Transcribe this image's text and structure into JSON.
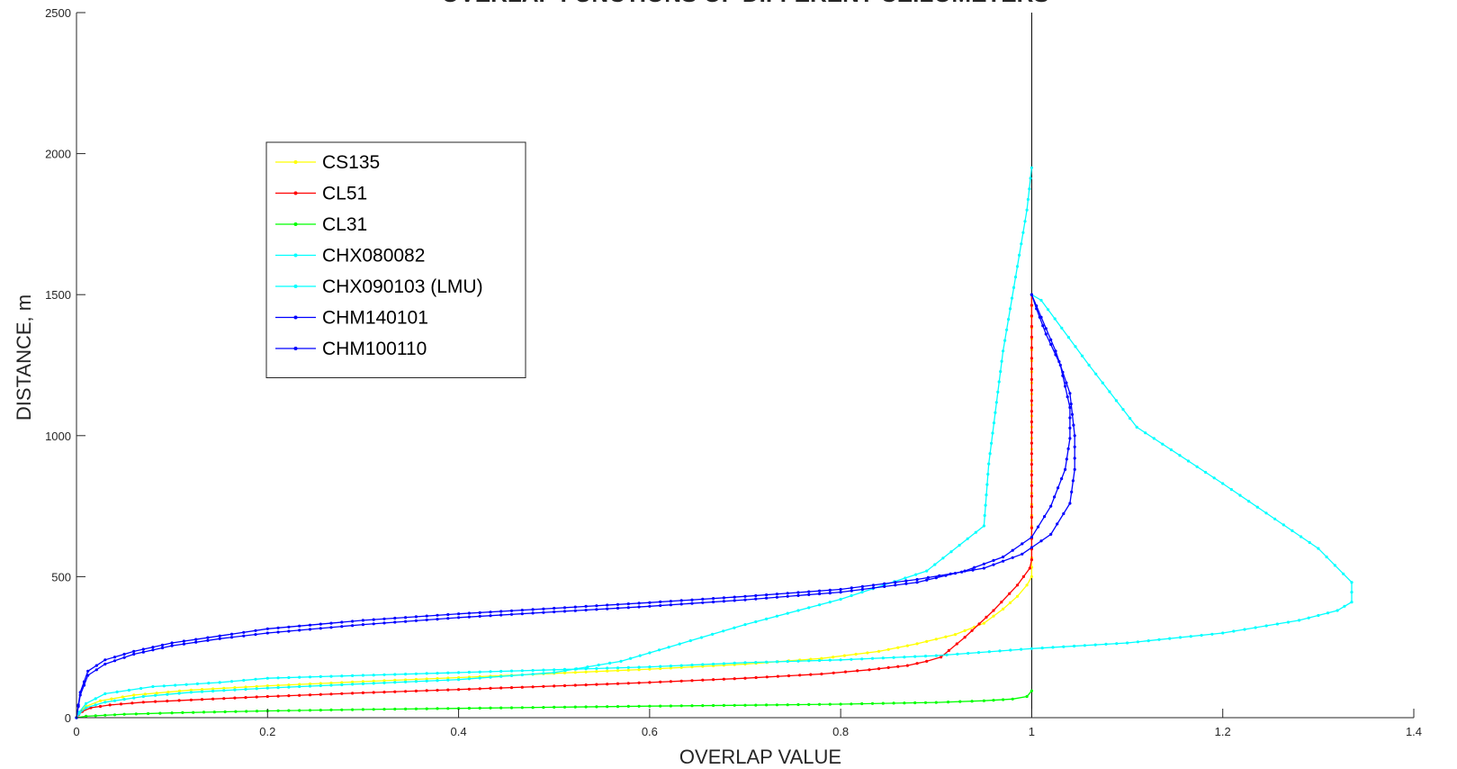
{
  "chart_data": {
    "type": "line",
    "title": "OVERLAP FUNCTIONS OF DIFFERENT CEILOMETERS",
    "xlabel": "OVERLAP VALUE",
    "ylabel": "DISTANCE, m",
    "xlim": [
      0,
      1.4
    ],
    "ylim": [
      0,
      2500
    ],
    "xticks": [
      0,
      0.2,
      0.4,
      0.6,
      0.8,
      1,
      1.2,
      1.4
    ],
    "xtick_labels": [
      "0",
      "0.2",
      "0.4",
      "0.6",
      "0.8",
      "1",
      "1.2",
      "1.4"
    ],
    "yticks": [
      0,
      500,
      1000,
      1500,
      2000,
      2500
    ],
    "ytick_labels": [
      "0",
      "500",
      "1000",
      "1500",
      "2000",
      "2500"
    ],
    "grid": false,
    "legend_position": "upper-left",
    "reference_line": {
      "x": 1,
      "y_range": [
        0,
        2500
      ],
      "color": "#000000"
    },
    "series": [
      {
        "name": "CS135",
        "color": "#ffff00",
        "x": [
          0,
          0.003,
          0.01,
          0.025,
          0.06,
          0.12,
          0.2,
          0.3,
          0.4,
          0.5,
          0.6,
          0.7,
          0.78,
          0.84,
          0.88,
          0.92,
          0.95,
          0.97,
          0.985,
          0.995,
          1,
          1,
          1
        ],
        "y": [
          0,
          20,
          40,
          60,
          80,
          98,
          113,
          128,
          142,
          157,
          172,
          190,
          210,
          235,
          262,
          295,
          335,
          385,
          430,
          470,
          500,
          600,
          1500
        ]
      },
      {
        "name": "CL51",
        "color": "#ff0000",
        "x": [
          0,
          0.002,
          0.006,
          0.015,
          0.035,
          0.07,
          0.12,
          0.2,
          0.3,
          0.4,
          0.5,
          0.6,
          0.7,
          0.78,
          0.83,
          0.87,
          0.89,
          0.905,
          0.93,
          0.96,
          0.985,
          0.998,
          1,
          1
        ],
        "y": [
          0,
          10,
          22,
          35,
          45,
          55,
          63,
          75,
          88,
          100,
          112,
          125,
          140,
          155,
          170,
          185,
          200,
          215,
          285,
          380,
          470,
          530,
          560,
          1500
        ]
      },
      {
        "name": "CL31",
        "color": "#00ff00",
        "x": [
          0,
          0.01,
          0.05,
          0.1,
          0.2,
          0.3,
          0.4,
          0.5,
          0.6,
          0.7,
          0.8,
          0.9,
          0.95,
          0.98,
          0.995,
          1
        ],
        "y": [
          0,
          5,
          12,
          17,
          24,
          29,
          33,
          37,
          41,
          44,
          48,
          54,
          60,
          66,
          75,
          95
        ]
      },
      {
        "name": "CHX080082",
        "color": "#00ffff",
        "x": [
          0,
          0.003,
          0.01,
          0.03,
          0.07,
          0.12,
          0.2,
          0.3,
          0.4,
          0.5,
          0.57,
          0.62,
          0.7,
          0.8,
          0.89,
          0.95,
          0.955,
          0.97,
          0.985,
          0.995,
          1
        ],
        "y": [
          0,
          15,
          35,
          55,
          75,
          90,
          105,
          120,
          135,
          160,
          200,
          250,
          330,
          420,
          520,
          680,
          900,
          1300,
          1600,
          1800,
          1950
        ]
      },
      {
        "name": "CHX090103 (LMU)",
        "color": "#00ffff",
        "x": [
          0,
          0.003,
          0.01,
          0.03,
          0.08,
          0.15,
          0.2,
          0.3,
          0.4,
          0.5,
          0.6,
          0.7,
          0.8,
          0.9,
          1.0,
          1.1,
          1.2,
          1.28,
          1.32,
          1.335,
          1.335,
          1.3,
          1.2,
          1.11,
          1.06,
          1.01,
          1
        ],
        "y": [
          0,
          20,
          50,
          85,
          110,
          125,
          140,
          150,
          160,
          170,
          180,
          195,
          205,
          220,
          245,
          265,
          300,
          345,
          380,
          410,
          480,
          600,
          830,
          1030,
          1250,
          1480,
          1500
        ]
      },
      {
        "name": "CHM140101",
        "color": "#0000ff",
        "x": [
          0,
          0.004,
          0.012,
          0.03,
          0.06,
          0.1,
          0.15,
          0.2,
          0.3,
          0.4,
          0.5,
          0.6,
          0.7,
          0.8,
          0.88,
          0.93,
          0.97,
          1.0,
          1.02,
          1.035,
          1.04,
          1.04,
          1.03,
          1.015,
          1.005,
          1
        ],
        "y": [
          0,
          80,
          150,
          190,
          225,
          255,
          280,
          300,
          330,
          355,
          375,
          395,
          418,
          445,
          480,
          520,
          570,
          640,
          750,
          880,
          990,
          1100,
          1250,
          1360,
          1450,
          1500
        ]
      },
      {
        "name": "CHM100110",
        "color": "#0000ff",
        "x": [
          0,
          0.004,
          0.012,
          0.03,
          0.06,
          0.1,
          0.15,
          0.2,
          0.3,
          0.4,
          0.5,
          0.6,
          0.7,
          0.8,
          0.88,
          0.95,
          0.99,
          1.02,
          1.04,
          1.045,
          1.045,
          1.04,
          1.025,
          1.01,
          1
        ],
        "y": [
          0,
          90,
          165,
          205,
          235,
          265,
          290,
          315,
          345,
          368,
          388,
          408,
          430,
          455,
          490,
          530,
          580,
          650,
          760,
          880,
          1000,
          1150,
          1300,
          1420,
          1500
        ]
      }
    ]
  }
}
